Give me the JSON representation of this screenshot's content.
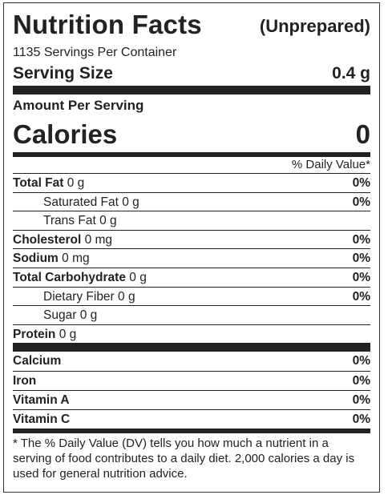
{
  "header": {
    "title": "Nutrition Facts",
    "qualifier": "(Unprepared)"
  },
  "servings_per_container": "1135 Servings Per Container",
  "serving_size": {
    "label": "Serving Size",
    "value": "0.4 g"
  },
  "amount_per_serving": "Amount Per Serving",
  "calories": {
    "label": "Calories",
    "value": "0"
  },
  "daily_value_header": "% Daily Value*",
  "nutrients": [
    {
      "name": "Total Fat",
      "amount": "0 g",
      "dv": "0%",
      "bold": true
    },
    {
      "name": "Saturated Fat",
      "amount": "0 g",
      "dv": "0%",
      "bold": false,
      "indent": true
    },
    {
      "name": "Trans Fat",
      "amount": "0 g",
      "dv": "",
      "bold": false,
      "indent": true
    },
    {
      "name": "Cholesterol",
      "amount": "0 mg",
      "dv": "0%",
      "bold": true
    },
    {
      "name": "Sodium",
      "amount": "0 mg",
      "dv": "0%",
      "bold": true
    },
    {
      "name": "Total Carbohydrate",
      "amount": "0 g",
      "dv": "0%",
      "bold": true
    },
    {
      "name": "Dietary Fiber",
      "amount": "0 g",
      "dv": "0%",
      "bold": false,
      "indent": true
    },
    {
      "name": "Sugar",
      "amount": "0 g",
      "dv": "",
      "bold": false,
      "indent": true
    },
    {
      "name": "Protein",
      "amount": "0 g",
      "dv": "",
      "bold": true
    }
  ],
  "vitamins": [
    {
      "name": "Calcium",
      "dv": "0%"
    },
    {
      "name": "Iron",
      "dv": "0%"
    },
    {
      "name": "Vitamin A",
      "dv": "0%"
    },
    {
      "name": "Vitamin C",
      "dv": "0%"
    }
  ],
  "footnote": "* The % Daily Value (DV) tells you how much a nutrient in a serving of food contributes to a daily diet. 2,000 calories a day is used for general nutrition advice."
}
